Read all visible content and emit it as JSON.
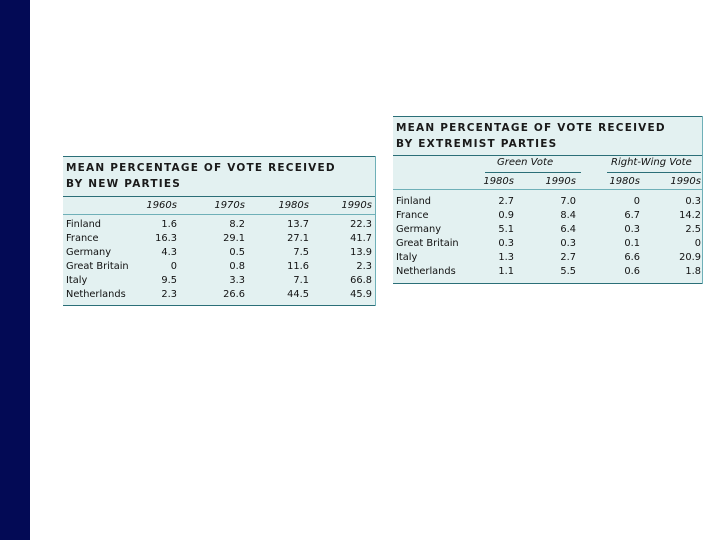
{
  "table_new": {
    "title_line1": "MEAN PERCENTAGE OF VOTE RECEIVED",
    "title_line2": "BY NEW PARTIES",
    "headers": [
      "1960s",
      "1970s",
      "1980s",
      "1990s"
    ],
    "rows": [
      {
        "country": "Finland",
        "values": [
          "1.6",
          "8.2",
          "13.7",
          "22.3"
        ]
      },
      {
        "country": "France",
        "values": [
          "16.3",
          "29.1",
          "27.1",
          "41.7"
        ]
      },
      {
        "country": "Germany",
        "values": [
          "4.3",
          "0.5",
          "7.5",
          "13.9"
        ]
      },
      {
        "country": "Great Britain",
        "values": [
          "0",
          "0.8",
          "11.6",
          "2.3"
        ]
      },
      {
        "country": "Italy",
        "values": [
          "9.5",
          "3.3",
          "7.1",
          "66.8"
        ]
      },
      {
        "country": "Netherlands",
        "values": [
          "2.3",
          "26.6",
          "44.5",
          "45.9"
        ]
      }
    ]
  },
  "table_extremist": {
    "title_line1": "MEAN PERCENTAGE OF VOTE RECEIVED",
    "title_line2": "BY EXTREMIST PARTIES",
    "group1": "Green Vote",
    "group2": "Right-Wing Vote",
    "headers": [
      "1980s",
      "1990s",
      "1980s",
      "1990s"
    ],
    "rows": [
      {
        "country": "Finland",
        "values": [
          "2.7",
          "7.0",
          "0",
          "0.3"
        ]
      },
      {
        "country": "France",
        "values": [
          "0.9",
          "8.4",
          "6.7",
          "14.2"
        ]
      },
      {
        "country": "Germany",
        "values": [
          "5.1",
          "6.4",
          "0.3",
          "2.5"
        ]
      },
      {
        "country": "Great Britain",
        "values": [
          "0.3",
          "0.3",
          "0.1",
          "0"
        ]
      },
      {
        "country": "Italy",
        "values": [
          "1.3",
          "2.7",
          "6.6",
          "20.9"
        ]
      },
      {
        "country": "Netherlands",
        "values": [
          "1.1",
          "5.5",
          "0.6",
          "1.8"
        ]
      }
    ]
  }
}
